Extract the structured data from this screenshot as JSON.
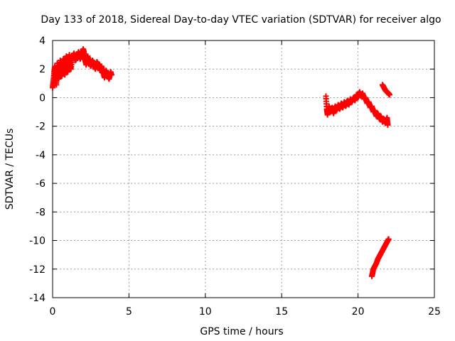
{
  "chart_data": {
    "type": "scatter",
    "title": "Day 133 of 2018, Sidereal Day-to-day VTEC variation (SDTVAR) for receiver algo",
    "xlabel": "GPS time / hours",
    "ylabel": "SDTVAR / TECUs",
    "xlim": [
      0,
      25
    ],
    "ylim": [
      -14,
      4
    ],
    "xticks": [
      "0",
      "5",
      "10",
      "15",
      "20",
      "25"
    ],
    "yticks": [
      "4",
      "2",
      "0",
      "-2",
      "-4",
      "-6",
      "-8",
      "-10",
      "-12",
      "-14"
    ],
    "grid": true,
    "legend": "none",
    "marker": "plus",
    "color": "#ff0000",
    "series": [
      {
        "points": [
          [
            0.0,
            0.7
          ],
          [
            0.05,
            1.2
          ],
          [
            0.1,
            1.8
          ],
          [
            0.15,
            2.2
          ],
          [
            0.2,
            1.5
          ],
          [
            0.25,
            0.9
          ],
          [
            0.3,
            2.4
          ],
          [
            0.35,
            1.7
          ],
          [
            0.4,
            1.3
          ],
          [
            0.45,
            2.0
          ],
          [
            0.5,
            2.6
          ],
          [
            0.55,
            1.9
          ],
          [
            0.6,
            1.5
          ],
          [
            0.65,
            2.2
          ],
          [
            0.7,
            2.7
          ],
          [
            0.75,
            2.1
          ],
          [
            0.8,
            1.6
          ],
          [
            0.85,
            2.4
          ],
          [
            0.9,
            2.9
          ],
          [
            0.95,
            2.2
          ],
          [
            1.0,
            1.8
          ],
          [
            1.05,
            2.6
          ],
          [
            1.1,
            3.0
          ],
          [
            1.15,
            2.4
          ],
          [
            1.2,
            2.0
          ],
          [
            1.3,
            2.8
          ],
          [
            1.4,
            3.1
          ],
          [
            1.5,
            2.6
          ],
          [
            1.6,
            2.9
          ],
          [
            1.7,
            3.2
          ],
          [
            1.8,
            2.7
          ],
          [
            1.9,
            3.0
          ],
          [
            2.0,
            3.4
          ],
          [
            2.05,
            3.2
          ],
          [
            2.1,
            2.7
          ],
          [
            2.2,
            2.3
          ],
          [
            2.3,
            2.9
          ],
          [
            2.4,
            2.5
          ],
          [
            2.5,
            2.2
          ],
          [
            2.6,
            2.6
          ],
          [
            2.7,
            2.4
          ],
          [
            2.8,
            2.0
          ],
          [
            2.9,
            2.5
          ],
          [
            3.0,
            2.3
          ],
          [
            3.1,
            1.9
          ],
          [
            3.2,
            2.2
          ],
          [
            3.3,
            1.8
          ],
          [
            3.4,
            1.4
          ],
          [
            3.5,
            1.9
          ],
          [
            3.6,
            1.6
          ],
          [
            3.7,
            1.3
          ],
          [
            3.8,
            1.8
          ],
          [
            3.85,
            1.6
          ]
        ]
      },
      {
        "points": [
          [
            17.9,
            0.1
          ],
          [
            17.95,
            -0.8
          ],
          [
            18.0,
            -1.2
          ],
          [
            18.1,
            -0.6
          ],
          [
            18.2,
            -1.0
          ],
          [
            18.3,
            -0.7
          ],
          [
            18.4,
            -1.1
          ],
          [
            18.5,
            -0.6
          ],
          [
            18.6,
            -0.9
          ],
          [
            18.7,
            -0.5
          ],
          [
            18.8,
            -0.8
          ],
          [
            18.9,
            -0.4
          ],
          [
            19.0,
            -0.7
          ],
          [
            19.1,
            -0.3
          ],
          [
            19.2,
            -0.6
          ],
          [
            19.3,
            -0.2
          ],
          [
            19.4,
            -0.5
          ],
          [
            19.5,
            -0.1
          ],
          [
            19.6,
            -0.3
          ],
          [
            19.7,
            0.0
          ],
          [
            19.8,
            -0.2
          ],
          [
            19.9,
            0.2
          ],
          [
            20.0,
            0.0
          ],
          [
            20.1,
            0.4
          ],
          [
            20.2,
            0.1
          ],
          [
            20.3,
            0.3
          ],
          [
            20.4,
            -0.1
          ],
          [
            20.5,
            0.0
          ],
          [
            20.6,
            -0.4
          ],
          [
            20.7,
            -0.3
          ],
          [
            20.8,
            -0.7
          ],
          [
            20.9,
            -0.6
          ],
          [
            21.0,
            -1.0
          ],
          [
            21.1,
            -0.9
          ],
          [
            21.2,
            -1.3
          ],
          [
            21.3,
            -1.1
          ],
          [
            21.4,
            -1.5
          ],
          [
            21.5,
            -1.3
          ],
          [
            21.6,
            -1.7
          ],
          [
            21.7,
            -1.5
          ],
          [
            21.8,
            -1.8
          ],
          [
            21.9,
            -1.4
          ],
          [
            21.95,
            -1.9
          ]
        ]
      },
      {
        "points": [
          [
            21.6,
            0.9
          ],
          [
            21.7,
            0.7
          ],
          [
            21.8,
            0.5
          ],
          [
            21.9,
            0.4
          ],
          [
            22.0,
            0.3
          ],
          [
            22.05,
            0.2
          ]
        ]
      },
      {
        "points": [
          [
            20.9,
            -12.5
          ],
          [
            20.95,
            -12.3
          ],
          [
            21.0,
            -12.0
          ],
          [
            21.1,
            -11.8
          ],
          [
            21.2,
            -11.6
          ],
          [
            21.3,
            -11.3
          ],
          [
            21.4,
            -11.1
          ],
          [
            21.5,
            -10.9
          ],
          [
            21.6,
            -10.7
          ],
          [
            21.7,
            -10.5
          ],
          [
            21.8,
            -10.3
          ],
          [
            21.9,
            -10.1
          ],
          [
            22.0,
            -9.9
          ]
        ]
      }
    ]
  }
}
